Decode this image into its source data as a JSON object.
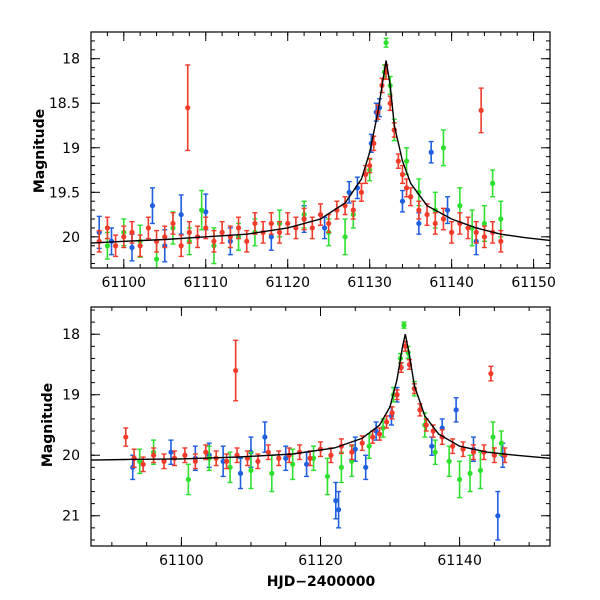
{
  "colors": {
    "blue": "#1f5fe0",
    "green": "#2ee02e",
    "red": "#f03a2a",
    "curve": "#000000"
  },
  "chart_data": [
    {
      "type": "scatter",
      "panel": "top",
      "title": "",
      "xlabel": "",
      "ylabel": "Magnitude",
      "xlim": [
        61096,
        61152
      ],
      "ylim": [
        20.35,
        17.7
      ],
      "xticks": [
        61100,
        61110,
        61120,
        61130,
        61140,
        61150
      ],
      "xtick_labels": [
        "61100",
        "61110",
        "61120",
        "61130",
        "61140",
        "61150"
      ],
      "yticks": [
        18,
        18.5,
        19,
        19.5,
        20
      ],
      "ytick_labels": [
        "18",
        "18.5",
        "19",
        "19.5",
        "20"
      ],
      "model_curve": {
        "x": [
          61096,
          61100,
          61105,
          61110,
          61115,
          61120,
          61124,
          61127,
          61129,
          61130,
          61131,
          61131.6,
          61132,
          61132.5,
          61133,
          61134,
          61135,
          61137,
          61140,
          61143,
          61146,
          61149,
          61152
        ],
        "y": [
          20.07,
          20.05,
          20.03,
          20.0,
          19.97,
          19.9,
          19.8,
          19.62,
          19.35,
          19.05,
          18.6,
          18.25,
          18.02,
          18.3,
          18.75,
          19.15,
          19.4,
          19.65,
          19.8,
          19.9,
          19.97,
          20.01,
          20.04
        ]
      },
      "series": [
        {
          "name": "blue",
          "x": [
            61097,
            61098.5,
            61101,
            61103.5,
            61105,
            61107,
            61110,
            61113,
            61118,
            61122,
            61124.5,
            61127.5,
            61128.5,
            61130.2,
            61130.8,
            61131.2,
            61134,
            61136,
            61137.5,
            61139.5,
            61143
          ],
          "y": [
            19.95,
            20.05,
            20.12,
            19.65,
            20.1,
            19.75,
            19.72,
            20.05,
            20.0,
            19.8,
            19.9,
            19.5,
            19.45,
            18.95,
            18.6,
            18.55,
            19.6,
            19.85,
            19.05,
            19.7,
            20.05
          ],
          "err": [
            0.18,
            0.15,
            0.15,
            0.2,
            0.18,
            0.22,
            0.2,
            0.15,
            0.15,
            0.15,
            0.12,
            0.12,
            0.12,
            0.1,
            0.1,
            0.1,
            0.12,
            0.12,
            0.12,
            0.15,
            0.15
          ]
        },
        {
          "name": "green",
          "x": [
            61098,
            61100,
            61102,
            61104,
            61106,
            61108,
            61109.5,
            61111,
            61114,
            61116,
            61119,
            61122,
            61125,
            61127,
            61128,
            61130,
            61131.8,
            61132,
            61132.5,
            61133,
            61134.5,
            61136,
            61138,
            61139,
            61141,
            61142.5,
            61144,
            61145,
            61146
          ],
          "y": [
            20.1,
            19.95,
            20.05,
            20.25,
            19.9,
            20.05,
            19.7,
            20.1,
            20.0,
            19.95,
            19.85,
            19.75,
            19.95,
            20.0,
            19.75,
            19.25,
            18.15,
            17.82,
            18.3,
            18.8,
            19.15,
            19.5,
            19.7,
            19.0,
            19.65,
            19.9,
            19.85,
            19.4,
            19.8
          ],
          "err": [
            0.15,
            0.15,
            0.18,
            0.2,
            0.18,
            0.15,
            0.22,
            0.2,
            0.15,
            0.15,
            0.15,
            0.15,
            0.15,
            0.2,
            0.15,
            0.12,
            0.08,
            0.05,
            0.1,
            0.12,
            0.15,
            0.15,
            0.2,
            0.2,
            0.2,
            0.2,
            0.2,
            0.15,
            0.2
          ]
        },
        {
          "name": "red",
          "x": [
            61097,
            61098,
            61099,
            61100,
            61101,
            61102,
            61103,
            61104,
            61105,
            61106,
            61107,
            61108,
            61109,
            61110,
            61111,
            61112,
            61113,
            61114,
            61115,
            61116,
            61117,
            61118,
            61119,
            61120,
            61121,
            61122,
            61123,
            61124,
            61125,
            61126,
            61127,
            61128,
            61129,
            61129.5,
            61130,
            61130.5,
            61131,
            61131.5,
            61132,
            61132.5,
            61133,
            61133.5,
            61134,
            61134.5,
            61135,
            61136,
            61137,
            61138,
            61139,
            61140,
            61141,
            61142,
            61143,
            61144,
            61145,
            61146,
            61107.8,
            61143.6
          ],
          "y": [
            20.05,
            19.9,
            20.1,
            20.0,
            19.95,
            20.1,
            19.9,
            20.05,
            20.0,
            19.85,
            20.1,
            19.95,
            20.0,
            19.9,
            20.05,
            19.95,
            20.0,
            19.9,
            20.05,
            19.85,
            19.95,
            19.85,
            19.95,
            19.85,
            19.9,
            19.8,
            19.9,
            19.75,
            19.85,
            19.7,
            19.65,
            19.7,
            19.5,
            19.3,
            19.2,
            18.95,
            18.6,
            18.3,
            18.15,
            18.5,
            18.8,
            19.15,
            19.3,
            19.45,
            19.55,
            19.7,
            19.75,
            19.85,
            19.8,
            19.95,
            19.85,
            19.9,
            19.95,
            20.0,
            19.95,
            20.05,
            18.55,
            18.58
          ],
          "err": [
            0.12,
            0.12,
            0.12,
            0.12,
            0.12,
            0.12,
            0.12,
            0.12,
            0.12,
            0.12,
            0.12,
            0.12,
            0.12,
            0.12,
            0.12,
            0.12,
            0.12,
            0.12,
            0.12,
            0.12,
            0.12,
            0.12,
            0.12,
            0.12,
            0.12,
            0.12,
            0.12,
            0.12,
            0.1,
            0.1,
            0.1,
            0.1,
            0.1,
            0.1,
            0.08,
            0.08,
            0.08,
            0.08,
            0.08,
            0.08,
            0.08,
            0.08,
            0.1,
            0.1,
            0.1,
            0.1,
            0.12,
            0.12,
            0.12,
            0.12,
            0.12,
            0.12,
            0.12,
            0.12,
            0.12,
            0.12,
            0.48,
            0.25
          ]
        }
      ]
    },
    {
      "type": "scatter",
      "panel": "bottom",
      "title": "",
      "xlabel": "HJD−2400000",
      "ylabel": "Magnitude",
      "xlim": [
        61087,
        61153
      ],
      "ylim": [
        21.5,
        17.55
      ],
      "xticks": [
        61100,
        61120,
        61140
      ],
      "xtick_labels": [
        "61100",
        "61120",
        "61140"
      ],
      "yticks": [
        18,
        19,
        20,
        21
      ],
      "ytick_labels": [
        "18",
        "19",
        "20",
        "21"
      ],
      "model_curve": {
        "x": [
          61087,
          61092,
          61100,
          61108,
          61116,
          61122,
          61126,
          61128.5,
          61130,
          61131,
          61131.8,
          61132.2,
          61132.8,
          61133.5,
          61135,
          61137,
          61140,
          61144,
          61148,
          61153
        ],
        "y": [
          20.08,
          20.07,
          20.06,
          20.03,
          19.98,
          19.88,
          19.72,
          19.5,
          19.2,
          18.75,
          18.2,
          18.0,
          18.35,
          18.85,
          19.35,
          19.65,
          19.85,
          19.95,
          20.0,
          20.05
        ]
      },
      "series": [
        {
          "name": "blue",
          "x": [
            61093,
            61098.5,
            61102,
            61104,
            61106,
            61108.5,
            61110,
            61112,
            61115,
            61118,
            61122.2,
            61122.6,
            61125,
            61126.5,
            61128,
            61130.2,
            61131,
            61136,
            61137.5,
            61139.5,
            61142,
            61145.5,
            61146.2
          ],
          "y": [
            20.2,
            19.95,
            20.05,
            20.0,
            20.1,
            20.3,
            19.95,
            19.7,
            20.05,
            20.15,
            20.75,
            20.9,
            19.9,
            20.2,
            19.6,
            19.35,
            19.0,
            19.85,
            19.55,
            19.25,
            19.9,
            21.0,
            20.0
          ],
          "err": [
            0.2,
            0.2,
            0.2,
            0.2,
            0.25,
            0.25,
            0.25,
            0.25,
            0.2,
            0.2,
            0.3,
            0.3,
            0.2,
            0.2,
            0.15,
            0.15,
            0.12,
            0.15,
            0.15,
            0.2,
            0.2,
            0.4,
            0.2
          ]
        },
        {
          "name": "green",
          "x": [
            61094,
            61096,
            61101,
            61104,
            61107,
            61110,
            61113,
            61116,
            61119,
            61121,
            61123,
            61124.5,
            61127,
            61129,
            61130.5,
            61131.5,
            61132,
            61132.6,
            61133.5,
            61135,
            61136.5,
            61138.5,
            61140,
            61141.5,
            61143,
            61144.8,
            61146
          ],
          "y": [
            20.1,
            19.95,
            20.4,
            20.05,
            20.2,
            20.25,
            20.3,
            20.15,
            20.05,
            20.35,
            20.2,
            20.1,
            19.85,
            19.55,
            19.0,
            18.4,
            17.85,
            18.3,
            18.9,
            19.5,
            19.95,
            20.1,
            20.4,
            20.3,
            20.25,
            19.7,
            19.8
          ],
          "err": [
            0.2,
            0.2,
            0.25,
            0.2,
            0.25,
            0.3,
            0.3,
            0.25,
            0.2,
            0.3,
            0.25,
            0.25,
            0.2,
            0.15,
            0.12,
            0.08,
            0.05,
            0.1,
            0.12,
            0.2,
            0.2,
            0.25,
            0.3,
            0.3,
            0.3,
            0.25,
            0.2
          ]
        },
        {
          "name": "red",
          "x": [
            61092,
            61093.2,
            61094.5,
            61096,
            61097.5,
            61099,
            61100.5,
            61102,
            61103.5,
            61105,
            61106.5,
            61108,
            61109.5,
            61111,
            61112.5,
            61114,
            61115.5,
            61117,
            61118.5,
            61120,
            61121.5,
            61123,
            61124.5,
            61126,
            61127.5,
            61128.5,
            61129.5,
            61130.3,
            61131,
            61131.6,
            61132.2,
            61132.8,
            61133.5,
            61134.3,
            61135.2,
            61136.2,
            61137.5,
            61139,
            61140.5,
            61142,
            61143.5,
            61145,
            61146.5,
            61107.8,
            61144.5
          ],
          "y": [
            19.7,
            20.05,
            20.15,
            20.0,
            20.1,
            20.05,
            20.0,
            20.1,
            19.95,
            20.05,
            20.1,
            20.0,
            20.05,
            20.1,
            19.95,
            20.05,
            20.0,
            19.95,
            20.05,
            19.9,
            20.0,
            19.85,
            19.95,
            19.8,
            19.7,
            19.65,
            19.45,
            19.3,
            19.0,
            18.55,
            18.2,
            18.5,
            18.9,
            19.25,
            19.5,
            19.6,
            19.7,
            19.85,
            19.9,
            19.95,
            19.95,
            20.0,
            20.0,
            18.6,
            18.65
          ],
          "err": [
            0.15,
            0.15,
            0.12,
            0.12,
            0.12,
            0.12,
            0.12,
            0.12,
            0.12,
            0.12,
            0.12,
            0.12,
            0.12,
            0.12,
            0.12,
            0.12,
            0.12,
            0.12,
            0.12,
            0.12,
            0.12,
            0.12,
            0.12,
            0.12,
            0.1,
            0.1,
            0.1,
            0.1,
            0.08,
            0.08,
            0.08,
            0.08,
            0.08,
            0.1,
            0.1,
            0.1,
            0.12,
            0.12,
            0.12,
            0.12,
            0.12,
            0.12,
            0.12,
            0.5,
            0.12
          ]
        }
      ]
    }
  ]
}
